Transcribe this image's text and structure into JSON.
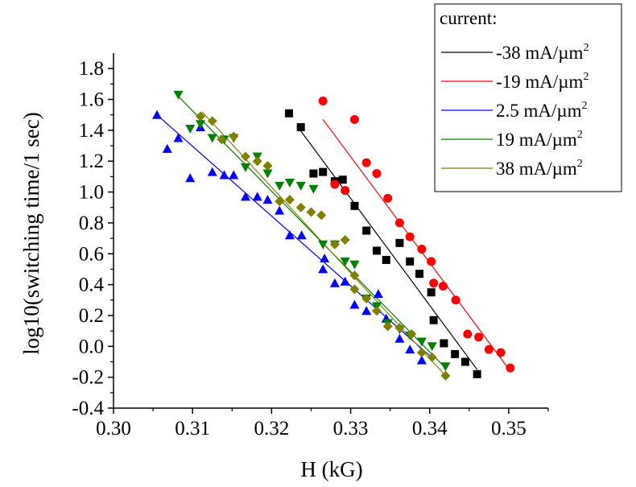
{
  "chart_data": {
    "type": "scatter",
    "xlabel": "H (kG)",
    "ylabel": "log10(switching time/1 sec)",
    "xlim": [
      0.3,
      0.355
    ],
    "ylim": [
      -0.4,
      1.9
    ],
    "xticks": [
      "0.30",
      "0.31",
      "0.32",
      "0.33",
      "0.34",
      "0.35"
    ],
    "xtick_values": [
      0.3,
      0.31,
      0.32,
      0.33,
      0.34,
      0.35
    ],
    "yticks": [
      "-0.4",
      "-0.2",
      "0.0",
      "0.2",
      "0.4",
      "0.6",
      "0.8",
      "1.0",
      "1.2",
      "1.4",
      "1.6",
      "1.8"
    ],
    "ytick_values": [
      -0.4,
      -0.2,
      0.0,
      0.2,
      0.4,
      0.6,
      0.8,
      1.0,
      1.2,
      1.4,
      1.6,
      1.8
    ],
    "grid": false,
    "legend_position": "top-right",
    "legend_title": "current:",
    "series": [
      {
        "name": "-38 mA/µm",
        "name_sup": "2",
        "color": "#000000",
        "marker": "square",
        "points": [
          [
            0.3222,
            1.51
          ],
          [
            0.3237,
            1.42
          ],
          [
            0.3253,
            1.12
          ],
          [
            0.3265,
            1.13
          ],
          [
            0.328,
            1.07
          ],
          [
            0.329,
            1.08
          ],
          [
            0.3305,
            0.91
          ],
          [
            0.332,
            0.75
          ],
          [
            0.3333,
            0.62
          ],
          [
            0.3345,
            0.56
          ],
          [
            0.3362,
            0.67
          ],
          [
            0.3375,
            0.55
          ],
          [
            0.3387,
            0.47
          ],
          [
            0.3402,
            0.35
          ],
          [
            0.3405,
            0.17
          ],
          [
            0.3418,
            0.02
          ],
          [
            0.3432,
            -0.05
          ],
          [
            0.3445,
            -0.1
          ],
          [
            0.346,
            -0.18
          ]
        ],
        "fit": [
          [
            0.3232,
            1.43
          ],
          [
            0.346,
            -0.15
          ]
        ]
      },
      {
        "name": "-19 mA/µm",
        "name_sup": "2",
        "color": "#ff0000",
        "marker": "circle",
        "points": [
          [
            0.3265,
            1.59
          ],
          [
            0.328,
            1.05
          ],
          [
            0.3293,
            1.01
          ],
          [
            0.3305,
            1.47
          ],
          [
            0.332,
            1.19
          ],
          [
            0.3333,
            1.12
          ],
          [
            0.3347,
            0.96
          ],
          [
            0.3362,
            0.8
          ],
          [
            0.3375,
            0.71
          ],
          [
            0.339,
            0.63
          ],
          [
            0.3402,
            0.55
          ],
          [
            0.3405,
            0.41
          ],
          [
            0.3417,
            0.39
          ],
          [
            0.3433,
            0.3
          ],
          [
            0.3448,
            0.08
          ],
          [
            0.3462,
            0.06
          ],
          [
            0.3475,
            -0.02
          ],
          [
            0.349,
            -0.04
          ],
          [
            0.3502,
            -0.14
          ]
        ],
        "fit": [
          [
            0.3265,
            1.47
          ],
          [
            0.3502,
            -0.16
          ]
        ]
      },
      {
        "name": "2.5 mA/µm",
        "name_sup": "2",
        "color": "#0000ff",
        "marker": "triangle-up",
        "points": [
          [
            0.3055,
            1.5
          ],
          [
            0.3068,
            1.28
          ],
          [
            0.3082,
            1.35
          ],
          [
            0.3097,
            1.09
          ],
          [
            0.311,
            1.42
          ],
          [
            0.3125,
            1.13
          ],
          [
            0.314,
            1.11
          ],
          [
            0.3152,
            1.11
          ],
          [
            0.3167,
            0.97
          ],
          [
            0.3182,
            0.97
          ],
          [
            0.3195,
            0.95
          ],
          [
            0.321,
            0.88
          ],
          [
            0.3223,
            0.72
          ],
          [
            0.3238,
            0.72
          ],
          [
            0.3265,
            0.5
          ],
          [
            0.3267,
            0.57
          ],
          [
            0.328,
            0.41
          ],
          [
            0.3293,
            0.42
          ],
          [
            0.3305,
            0.27
          ],
          [
            0.332,
            0.23
          ],
          [
            0.3335,
            0.34
          ],
          [
            0.3345,
            0.18
          ],
          [
            0.3362,
            0.05
          ],
          [
            0.3375,
            -0.02
          ],
          [
            0.339,
            -0.09
          ]
        ],
        "fit": [
          [
            0.3055,
            1.5
          ],
          [
            0.34,
            -0.06
          ]
        ]
      },
      {
        "name": "19 mA/µm",
        "name_sup": "2",
        "color": "#008000",
        "marker": "triangle-down",
        "points": [
          [
            0.3082,
            1.63
          ],
          [
            0.3097,
            1.41
          ],
          [
            0.311,
            1.44
          ],
          [
            0.3125,
            1.35
          ],
          [
            0.314,
            1.34
          ],
          [
            0.3152,
            1.35
          ],
          [
            0.3167,
            1.16
          ],
          [
            0.3182,
            1.23
          ],
          [
            0.3195,
            1.12
          ],
          [
            0.321,
            1.04
          ],
          [
            0.3223,
            1.06
          ],
          [
            0.3237,
            1.04
          ],
          [
            0.3253,
            1.02
          ],
          [
            0.3265,
            0.66
          ],
          [
            0.328,
            0.66
          ],
          [
            0.3293,
            0.55
          ],
          [
            0.3305,
            0.53
          ],
          [
            0.332,
            0.31
          ],
          [
            0.3333,
            0.26
          ],
          [
            0.3347,
            0.15
          ],
          [
            0.3362,
            0.11
          ],
          [
            0.3375,
            0.07
          ],
          [
            0.339,
            0.03
          ],
          [
            0.3403,
            0.0
          ],
          [
            0.342,
            -0.13
          ]
        ],
        "fit": [
          [
            0.3082,
            1.62
          ],
          [
            0.342,
            -0.14
          ]
        ]
      },
      {
        "name": "38 mA/µm",
        "name_sup": "2",
        "color": "#808000",
        "marker": "diamond",
        "points": [
          [
            0.311,
            1.49
          ],
          [
            0.3125,
            1.46
          ],
          [
            0.3137,
            1.34
          ],
          [
            0.3152,
            1.36
          ],
          [
            0.3167,
            1.23
          ],
          [
            0.3182,
            1.2
          ],
          [
            0.3195,
            1.17
          ],
          [
            0.321,
            0.94
          ],
          [
            0.3223,
            0.95
          ],
          [
            0.3237,
            0.9
          ],
          [
            0.325,
            0.87
          ],
          [
            0.3263,
            0.85
          ],
          [
            0.328,
            0.66
          ],
          [
            0.3293,
            0.69
          ],
          [
            0.3305,
            0.46
          ],
          [
            0.3305,
            0.37
          ],
          [
            0.332,
            0.31
          ],
          [
            0.3333,
            0.23
          ],
          [
            0.3347,
            0.13
          ],
          [
            0.3362,
            0.12
          ],
          [
            0.3377,
            0.08
          ],
          [
            0.339,
            -0.04
          ],
          [
            0.3403,
            -0.07
          ],
          [
            0.342,
            -0.19
          ]
        ],
        "fit": [
          [
            0.3112,
            1.52
          ],
          [
            0.342,
            -0.19
          ]
        ]
      }
    ]
  }
}
